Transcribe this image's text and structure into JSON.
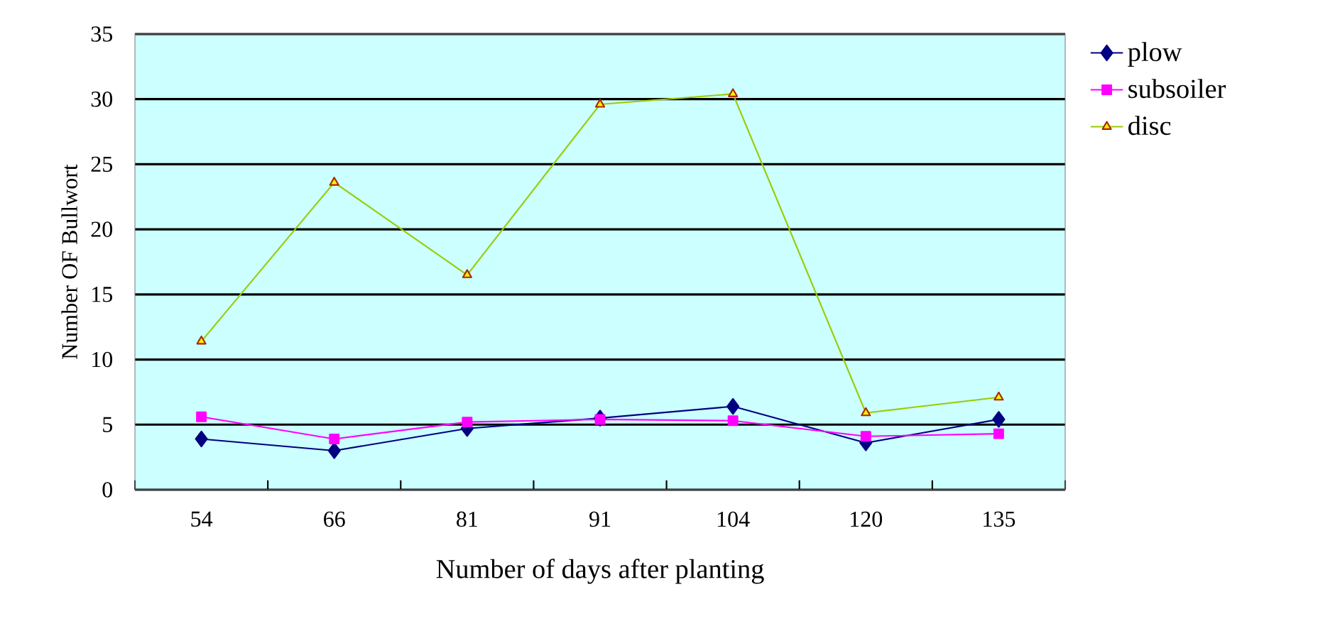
{
  "chart_data": {
    "type": "line",
    "xlabel": "Number of days after planting",
    "ylabel": "Number OF  Bullwort",
    "categories": [
      "54",
      "66",
      "81",
      "91",
      "104",
      "120",
      "135"
    ],
    "series": [
      {
        "name": "plow",
        "color": "#000080",
        "marker": "diamond",
        "values": [
          3.9,
          3.0,
          4.7,
          5.5,
          6.4,
          3.6,
          5.4
        ]
      },
      {
        "name": "subsoiler",
        "color": "#ff00ff",
        "marker": "square",
        "values": [
          5.6,
          3.9,
          5.2,
          5.4,
          5.3,
          4.1,
          4.3
        ]
      },
      {
        "name": "disc",
        "color": "#99cc00",
        "marker": "triangle",
        "values": [
          11.4,
          23.6,
          16.5,
          29.6,
          30.4,
          5.9,
          7.1
        ]
      }
    ],
    "ylim": [
      0,
      35
    ],
    "yticks": [
      0,
      5,
      10,
      15,
      20,
      25,
      30,
      35
    ],
    "grid": "y",
    "legend": "top right",
    "line_style": "solid"
  }
}
